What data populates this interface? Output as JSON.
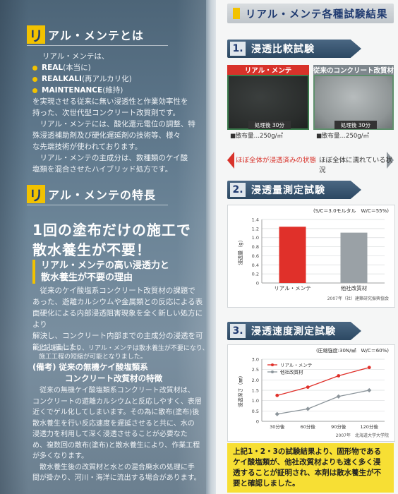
{
  "left": {
    "section1": {
      "ri": "リ",
      "title": "アル・メンテとは",
      "intro": "リアル・メンテは、",
      "bullets": [
        {
          "name": "REAL",
          "note": "(本当に)"
        },
        {
          "name": "REALKALI",
          "note": "(再アルカリ化)"
        },
        {
          "name": "MAINTENANCE",
          "note": "(維持)"
        }
      ],
      "paragraphs": [
        "を実現させる従来に無い浸透性と作業効率性を",
        "持った、次世代型コンクリート改質剤です。",
        "　リアル・メンテには、酸化還元電位の調整、特",
        "殊浸透補助剤及び硬化遅延剤の技術等、様々",
        "な先端技術が使われております。",
        "　リアル・メンテの主成分は、数種類のケイ酸",
        "塩類を混合させたハイブリッド処方です。"
      ]
    },
    "section2": {
      "ri": "リ",
      "title": "アル・メンテの特長",
      "headline": [
        "1回の塗布だけの施工で",
        "散水養生が不要！"
      ],
      "reason": [
        "リアル・メンテの高い浸透力と",
        "散水養生が不要の理由"
      ],
      "body": [
        "　従来のケイ酸塩系コンクリート改質材の課題で",
        "あった、遊離カルシウムや金属類との反応による表",
        "面硬化による内部浸透阻害現象を全く新しい処方により",
        "解決し、コンクリート内部までの主成分の浸透を可",
        "能としました。"
      ],
      "footnote": [
        "※上記理由により、リアル・メンテは散水養生が不要になり、",
        "　施工工程の短縮が可能となりました。"
      ]
    },
    "note": {
      "heading": [
        "(備考) 従来の無機ケイ酸塩類系",
        "　　　　コンクリート改質材の特徴"
      ],
      "body": [
        "　従来の無機ケイ酸塩類系コンクリート改質材は、",
        "コンクリートの遊離カルシウムと反応しやすく、表層",
        "近くでゲル化してしまいます。その為に散布(塗布)後",
        "散水養生を行い反応速度を遅延させると共に、水の",
        "浸透力を利用して深く浸透させることが必要なた",
        "め、複数回の散布(塗布)と散水養生により、作業工程",
        "が多くなります。",
        "　散水養生後の改質材と水との混合廃水の処理に手",
        "間が掛かり、河川・海洋に流出する場合があります。"
      ]
    }
  },
  "right": {
    "title": "リアル・メンテ各種試験結果",
    "test1": {
      "num": "1.",
      "title": "浸透比較試験",
      "left_label": "リアル・メンテ",
      "right_label": "従来のコンクリート改質材",
      "tag_left": "処理後 30分",
      "tag_right": "処理後 30分",
      "amount_left": "■散布量…250g/㎡",
      "amount_right": "■散布量…250g/㎡",
      "result_left": "ほぼ全体が浸透済みの状態",
      "result_right": "ほぼ全体に濡れている状況",
      "colors": {
        "left": "#d8322a",
        "right": "#8e969c"
      }
    },
    "test2": {
      "num": "2.",
      "title": "浸透量測定試験",
      "condition": "(S/C＝3.0モルタル　W/C＝55%)",
      "source": "2007年（社）建築研究振興協会"
    },
    "test3": {
      "num": "3.",
      "title": "浸透速度測定試験",
      "condition": "(圧縮強度:30N/㎟　W/C＝60%)",
      "source": "2007年　北海道大学大学院"
    },
    "conclusion": [
      "上記1・2・3の試験結果より、固形物である",
      "ケイ酸塩類が、他社改質材よりも速く多く浸",
      "透することが証明され、本剤は散水養生が不",
      "要と確認しました。"
    ]
  },
  "chart_data": [
    {
      "type": "bar",
      "title": "",
      "categories": [
        "リアル・メンテ",
        "他社改質材"
      ],
      "values": [
        1.24,
        1.11
      ],
      "colors": [
        "#e0302a",
        "#9aa1a6"
      ],
      "ylabel": "浸透量（g）",
      "ylim": [
        0,
        1.4
      ],
      "yticks": [
        "0",
        "0.2",
        "0.4",
        "0.6",
        "0.8",
        "1.0",
        "1.2",
        "1.4"
      ],
      "grid": true
    },
    {
      "type": "line",
      "title": "",
      "categories": [
        "30分後",
        "60分後",
        "90分後",
        "120分後"
      ],
      "x": [
        30,
        60,
        90,
        120
      ],
      "series": [
        {
          "name": "リアル・メンテ",
          "color": "#e0302a",
          "values": [
            1.25,
            1.65,
            2.2,
            2.6
          ]
        },
        {
          "name": "他社改質材",
          "color": "#8c959b",
          "values": [
            0.35,
            0.6,
            1.2,
            1.5
          ]
        }
      ],
      "ylabel": "浸透深さ（㎜）",
      "ylim": [
        0,
        3
      ],
      "yticks": [
        "0",
        "0.5",
        "1.0",
        "1.5",
        "2.0",
        "2.5",
        "3.0"
      ],
      "grid": true,
      "legend": "top-left"
    }
  ]
}
